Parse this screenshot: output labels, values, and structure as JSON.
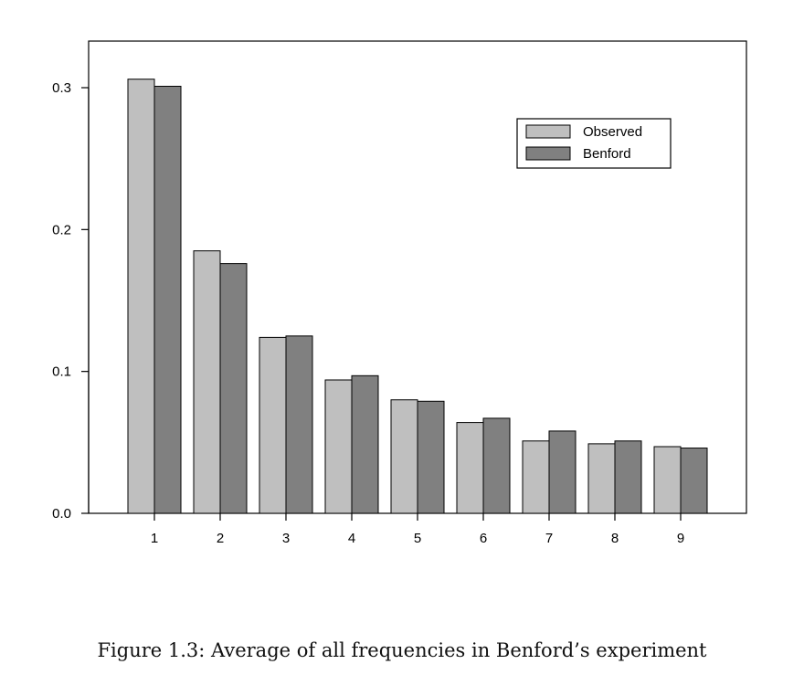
{
  "caption": "Figure 1.3: Average of all frequencies in Benford’s experiment",
  "chart_data": {
    "type": "bar",
    "categories": [
      "1",
      "2",
      "3",
      "4",
      "5",
      "6",
      "7",
      "8",
      "9"
    ],
    "series": [
      {
        "name": "Observed",
        "values": [
          0.306,
          0.185,
          0.124,
          0.094,
          0.08,
          0.064,
          0.051,
          0.049,
          0.047
        ],
        "color": "#bfbfbf"
      },
      {
        "name": "Benford",
        "values": [
          0.301,
          0.176,
          0.125,
          0.097,
          0.079,
          0.067,
          0.058,
          0.051,
          0.046
        ],
        "color": "#808080"
      }
    ],
    "yticks": [
      "0.0",
      "0.1",
      "0.2",
      "0.3"
    ],
    "ylim": [
      0,
      0.3
    ],
    "legend_position": "top-right",
    "grid": false
  }
}
